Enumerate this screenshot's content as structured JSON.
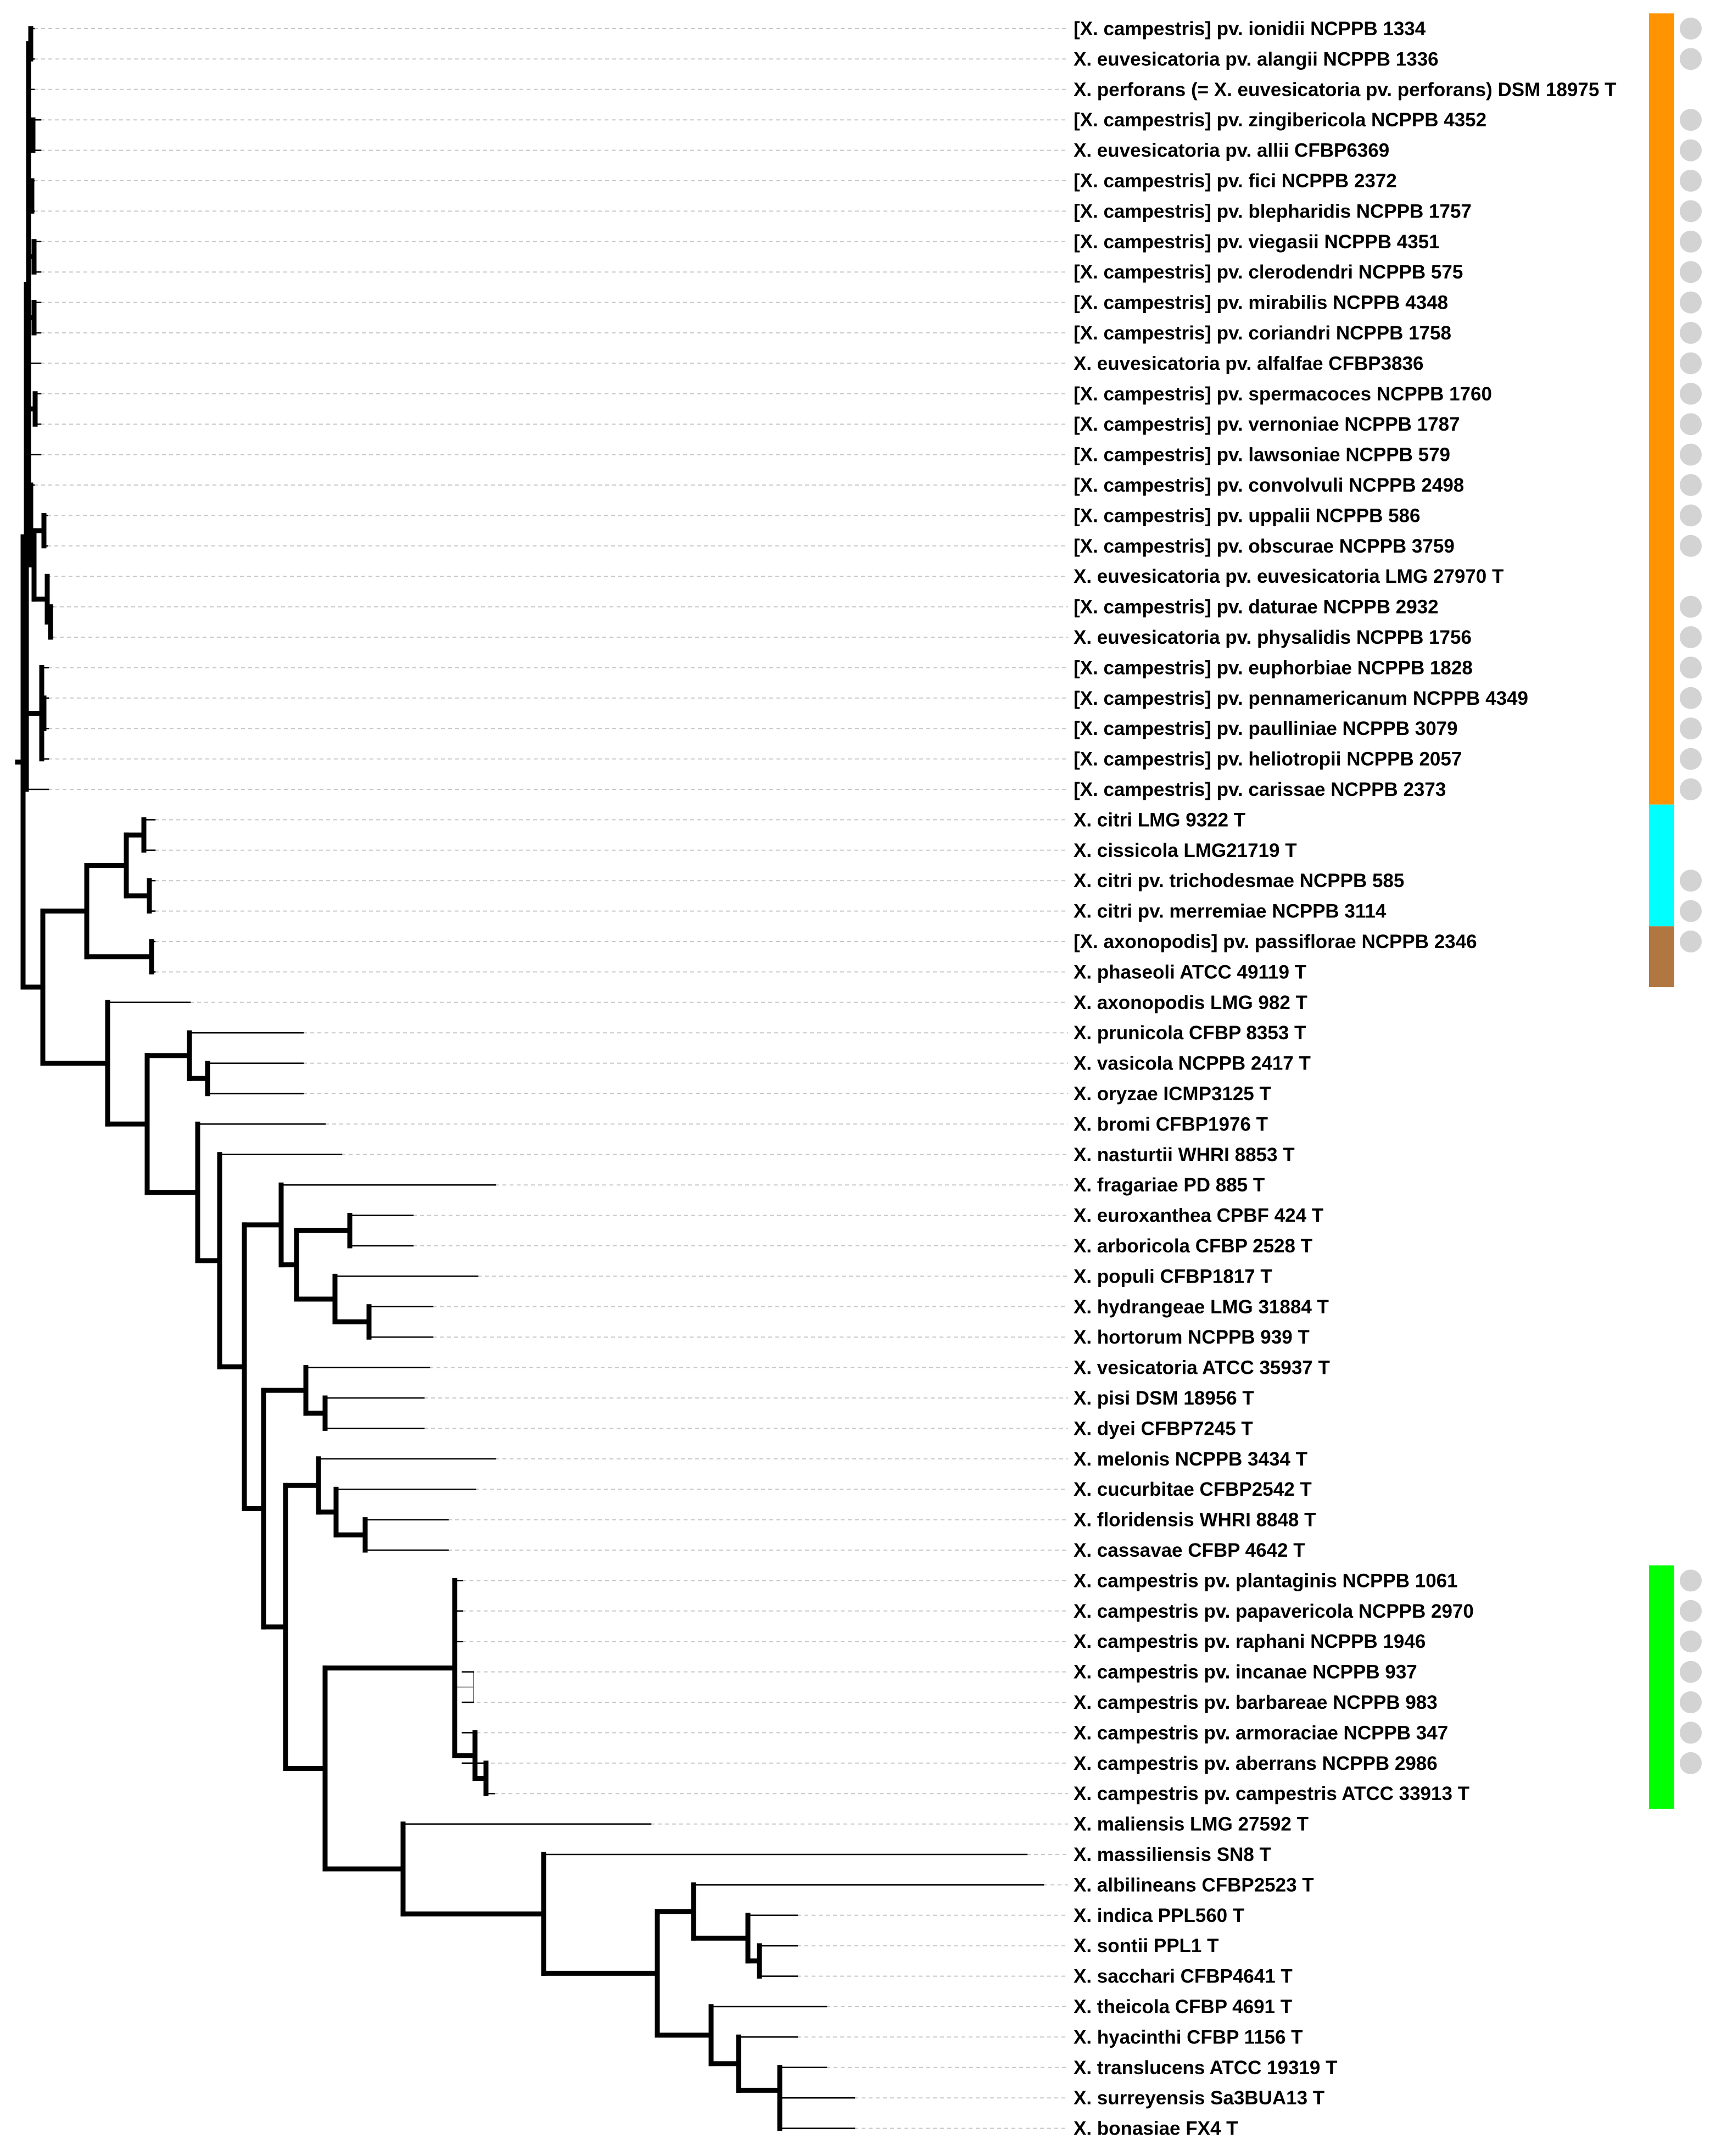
{
  "leaves": [
    {
      "label": "[X. campestris] pv. ionidii NCPPB 1334",
      "group": "orange",
      "dot": true
    },
    {
      "label": "X. euvesicatoria pv. alangii NCPPB 1336",
      "group": "orange",
      "dot": true
    },
    {
      "label": "X. perforans (= X. euvesicatoria pv. perforans) DSM 18975 T",
      "group": "orange",
      "dot": false
    },
    {
      "label": "[X. campestris] pv. zingibericola NCPPB 4352",
      "group": "orange",
      "dot": true
    },
    {
      "label": "X. euvesicatoria pv. allii CFBP6369",
      "group": "orange",
      "dot": true
    },
    {
      "label": "[X. campestris] pv. fici NCPPB 2372",
      "group": "orange",
      "dot": true
    },
    {
      "label": "[X. campestris] pv. blepharidis NCPPB 1757",
      "group": "orange",
      "dot": true
    },
    {
      "label": "[X. campestris] pv. viegasii NCPPB 4351",
      "group": "orange",
      "dot": true
    },
    {
      "label": "[X. campestris] pv. clerodendri NCPPB 575",
      "group": "orange",
      "dot": true
    },
    {
      "label": "[X. campestris] pv. mirabilis NCPPB 4348",
      "group": "orange",
      "dot": true
    },
    {
      "label": "[X. campestris] pv. coriandri NCPPB 1758",
      "group": "orange",
      "dot": true
    },
    {
      "label": "X. euvesicatoria pv. alfalfae CFBP3836",
      "group": "orange",
      "dot": true
    },
    {
      "label": "[X. campestris] pv. spermacoces NCPPB 1760",
      "group": "orange",
      "dot": true
    },
    {
      "label": "[X. campestris] pv. vernoniae NCPPB 1787",
      "group": "orange",
      "dot": true
    },
    {
      "label": "[X. campestris] pv. lawsoniae NCPPB 579",
      "group": "orange",
      "dot": true
    },
    {
      "label": "[X. campestris] pv. convolvuli NCPPB 2498",
      "group": "orange",
      "dot": true
    },
    {
      "label": "[X. campestris] pv. uppalii NCPPB 586",
      "group": "orange",
      "dot": true
    },
    {
      "label": "[X. campestris] pv. obscurae NCPPB 3759",
      "group": "orange",
      "dot": true
    },
    {
      "label": "X. euvesicatoria pv. euvesicatoria LMG 27970 T",
      "group": "orange",
      "dot": false
    },
    {
      "label": "[X. campestris] pv. daturae NCPPB 2932",
      "group": "orange",
      "dot": true
    },
    {
      "label": "X. euvesicatoria pv. physalidis NCPPB 1756",
      "group": "orange",
      "dot": true
    },
    {
      "label": "[X. campestris] pv. euphorbiae NCPPB 1828",
      "group": "orange",
      "dot": true
    },
    {
      "label": "[X. campestris] pv. pennamericanum NCPPB 4349",
      "group": "orange",
      "dot": true
    },
    {
      "label": "[X. campestris] pv. paulliniae NCPPB 3079",
      "group": "orange",
      "dot": true
    },
    {
      "label": "[X. campestris] pv. heliotropii NCPPB 2057",
      "group": "orange",
      "dot": true
    },
    {
      "label": "[X. campestris] pv. carissae NCPPB 2373",
      "group": "orange",
      "dot": true
    },
    {
      "label": "X. citri LMG 9322 T",
      "group": "cyan",
      "dot": false
    },
    {
      "label": "X. cissicola LMG21719 T",
      "group": "cyan",
      "dot": false
    },
    {
      "label": "X. citri pv. trichodesmae NCPPB 585",
      "group": "cyan",
      "dot": true
    },
    {
      "label": "X. citri pv. merremiae NCPPB 3114",
      "group": "cyan",
      "dot": true
    },
    {
      "label": "[X. axonopodis] pv. passiflorae NCPPB 2346",
      "group": "brown",
      "dot": true
    },
    {
      "label": "X. phaseoli ATCC 49119 T",
      "group": "brown",
      "dot": false
    },
    {
      "label": "X. axonopodis LMG 982 T",
      "group": null,
      "dot": false
    },
    {
      "label": "X. prunicola CFBP 8353 T",
      "group": null,
      "dot": false
    },
    {
      "label": "X. vasicola NCPPB 2417 T",
      "group": null,
      "dot": false
    },
    {
      "label": "X. oryzae ICMP3125 T",
      "group": null,
      "dot": false
    },
    {
      "label": "X. bromi CFBP1976 T",
      "group": null,
      "dot": false
    },
    {
      "label": "X. nasturtii WHRI 8853 T",
      "group": null,
      "dot": false
    },
    {
      "label": "X. fragariae PD 885 T",
      "group": null,
      "dot": false
    },
    {
      "label": "X. euroxanthea CPBF 424 T",
      "group": null,
      "dot": false
    },
    {
      "label": "X. arboricola CFBP 2528 T",
      "group": null,
      "dot": false
    },
    {
      "label": "X. populi CFBP1817 T",
      "group": null,
      "dot": false
    },
    {
      "label": "X. hydrangeae LMG 31884 T",
      "group": null,
      "dot": false
    },
    {
      "label": "X. hortorum NCPPB 939 T",
      "group": null,
      "dot": false
    },
    {
      "label": "X. vesicatoria ATCC 35937 T",
      "group": null,
      "dot": false
    },
    {
      "label": "X. pisi DSM 18956 T",
      "group": null,
      "dot": false
    },
    {
      "label": "X. dyei CFBP7245 T",
      "group": null,
      "dot": false
    },
    {
      "label": "X. melonis NCPPB 3434 T",
      "group": null,
      "dot": false
    },
    {
      "label": "X. cucurbitae CFBP2542 T",
      "group": null,
      "dot": false
    },
    {
      "label": "X. floridensis WHRI 8848 T",
      "group": null,
      "dot": false
    },
    {
      "label": "X. cassavae CFBP 4642 T",
      "group": null,
      "dot": false
    },
    {
      "label": "X. campestris pv. plantaginis NCPPB 1061",
      "group": "green",
      "dot": true
    },
    {
      "label": "X. campestris pv. papavericola NCPPB 2970",
      "group": "green",
      "dot": true
    },
    {
      "label": "X. campestris pv. raphani NCPPB 1946",
      "group": "green",
      "dot": true
    },
    {
      "label": "X. campestris pv. incanae NCPPB 937",
      "group": "green",
      "dot": true
    },
    {
      "label": "X. campestris pv. barbareae NCPPB 983",
      "group": "green",
      "dot": true
    },
    {
      "label": "X. campestris pv. armoraciae NCPPB 347",
      "group": "green",
      "dot": true
    },
    {
      "label": "X. campestris pv. aberrans NCPPB 2986",
      "group": "green",
      "dot": true
    },
    {
      "label": "X. campestris pv. campestris ATCC 33913 T",
      "group": "green",
      "dot": false
    },
    {
      "label": "X. maliensis LMG 27592 T",
      "group": null,
      "dot": false
    },
    {
      "label": "X. massiliensis SN8 T",
      "group": null,
      "dot": false
    },
    {
      "label": "X. albilineans CFBP2523 T",
      "group": null,
      "dot": false
    },
    {
      "label": "X. indica PPL560 T",
      "group": null,
      "dot": false
    },
    {
      "label": "X. sontii PPL1 T",
      "group": null,
      "dot": false
    },
    {
      "label": "X. sacchari CFBP4641 T",
      "group": null,
      "dot": false
    },
    {
      "label": "X. theicola CFBP 4691 T",
      "group": null,
      "dot": false
    },
    {
      "label": "X. hyacinthi CFBP 1156 T",
      "group": null,
      "dot": false
    },
    {
      "label": "X. translucens ATCC 19319 T",
      "group": null,
      "dot": false
    },
    {
      "label": "X. surreyensis Sa3BUA13 T",
      "group": null,
      "dot": false
    },
    {
      "label": "X. bonasiae FX4 T"
    }
  ],
  "groups": [
    {
      "id": "orange",
      "color": "#ff9300",
      "first": 0,
      "last": 25
    },
    {
      "id": "cyan",
      "color": "#00ffff",
      "first": 26,
      "last": 29
    },
    {
      "id": "brown",
      "color": "#b07840",
      "first": 30,
      "last": 31
    },
    {
      "id": "green",
      "color": "#00ff00",
      "first": 51,
      "last": 58
    }
  ],
  "colors": {
    "branch": "#000000",
    "guide": "#c8c8c8",
    "dot": "#d3d3d3",
    "label": "#000000",
    "background": "#ffffff"
  }
}
